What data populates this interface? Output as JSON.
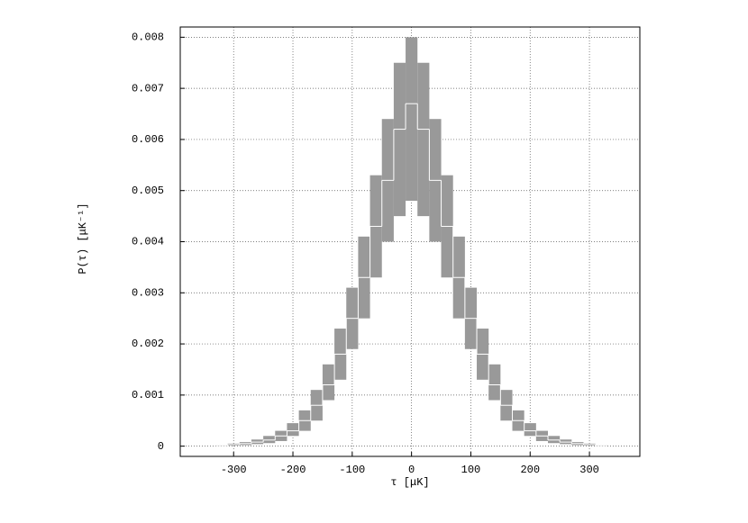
{
  "chart_data": {
    "type": "histogram",
    "xlabel": "τ [μK]",
    "ylabel": "P(τ) [μK⁻¹]",
    "bins": [
      -330,
      -310,
      -290,
      -270,
      -250,
      -230,
      -210,
      -190,
      -170,
      -150,
      -130,
      -110,
      -90,
      -70,
      -50,
      -30,
      -10,
      10,
      30,
      50,
      70,
      90,
      110,
      130,
      150,
      170,
      190,
      210,
      230,
      250,
      270,
      290,
      310,
      330
    ],
    "series": [
      {
        "color": "#999999",
        "values": [
          0,
          1e-05,
          2e-05,
          4e-05,
          6e-05,
          0.0001,
          0.0002,
          0.0003,
          0.0005,
          0.0009,
          0.0013,
          0.0019,
          0.0025,
          0.0033,
          0.004,
          0.0045,
          0.0048,
          0.0045,
          0.004,
          0.0033,
          0.0025,
          0.0019,
          0.0013,
          0.0009,
          0.0005,
          0.0003,
          0.0002,
          0.0001,
          6e-05,
          4e-05,
          2e-05,
          1e-05,
          0
        ]
      },
      {
        "color": "#999999",
        "values": [
          2e-05,
          5e-05,
          8e-05,
          0.00013,
          0.0002,
          0.0003,
          0.00045,
          0.0007,
          0.0011,
          0.0016,
          0.0023,
          0.0031,
          0.0041,
          0.0053,
          0.0064,
          0.0075,
          0.008,
          0.0075,
          0.0064,
          0.0053,
          0.0041,
          0.0031,
          0.0023,
          0.0016,
          0.0011,
          0.0007,
          0.00045,
          0.0003,
          0.0002,
          0.00013,
          8e-05,
          5e-05,
          2e-05
        ]
      },
      {
        "color": "#ffffff",
        "values": [
          1e-05,
          3e-05,
          5e-05,
          8e-05,
          0.00012,
          0.0002,
          0.0003,
          0.0005,
          0.0008,
          0.0012,
          0.0018,
          0.0025,
          0.0033,
          0.0043,
          0.0052,
          0.0062,
          0.0067,
          0.0062,
          0.0052,
          0.0043,
          0.0033,
          0.0025,
          0.0018,
          0.0012,
          0.0008,
          0.0005,
          0.0003,
          0.0002,
          0.00012,
          8e-05,
          5e-05,
          3e-05,
          1e-05
        ]
      }
    ],
    "xlim": [
      -390,
      385
    ],
    "ylim": [
      -0.0002,
      0.0082
    ],
    "xticks": [
      -300,
      -200,
      -100,
      0,
      100,
      200,
      300
    ],
    "yticks": [
      0,
      0.001,
      0.002,
      0.003,
      0.004,
      0.005,
      0.006,
      0.007,
      0.008
    ],
    "grid": true
  }
}
